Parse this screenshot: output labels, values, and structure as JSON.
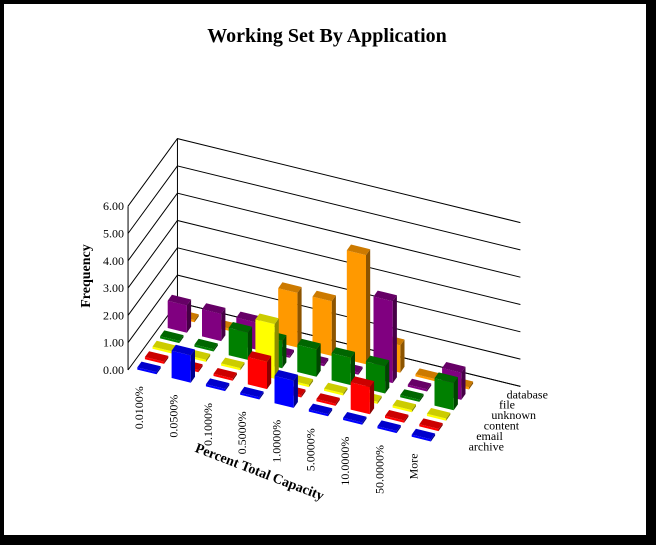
{
  "chart_data": {
    "type": "bar",
    "title": "Working Set By Application",
    "ylabel": "Frequency",
    "xlabel": "Percent Total Capacity",
    "ylim": [
      0,
      6
    ],
    "yticks": [
      "0.00",
      "1.00",
      "2.00",
      "3.00",
      "4.00",
      "5.00",
      "6.00"
    ],
    "categories": [
      "0.0100%",
      "0.0500%",
      "0.1000%",
      "0.5000%",
      "1.0000%",
      "5.0000%",
      "10.0000%",
      "50.0000%",
      "More"
    ],
    "series": [
      {
        "name": "archive",
        "color": "#0000ff",
        "values": [
          0,
          1,
          0,
          0,
          1,
          0,
          0,
          0,
          0
        ]
      },
      {
        "name": "email",
        "color": "#ff0000",
        "values": [
          0,
          0,
          0,
          1,
          0,
          0,
          1,
          0,
          0
        ]
      },
      {
        "name": "content",
        "color": "#ffff00",
        "values": [
          0,
          0,
          0,
          2,
          0,
          0,
          0,
          0,
          0
        ]
      },
      {
        "name": "unknown",
        "color": "#008000",
        "values": [
          0,
          0,
          1,
          1,
          1,
          1,
          1,
          0,
          1
        ]
      },
      {
        "name": "file",
        "color": "#800080",
        "values": [
          1,
          1,
          1,
          0,
          0,
          0,
          3,
          0,
          1
        ]
      },
      {
        "name": "database",
        "color": "#ff9900",
        "values": [
          0,
          0,
          0,
          2,
          2,
          4,
          1,
          0,
          0
        ]
      }
    ]
  }
}
